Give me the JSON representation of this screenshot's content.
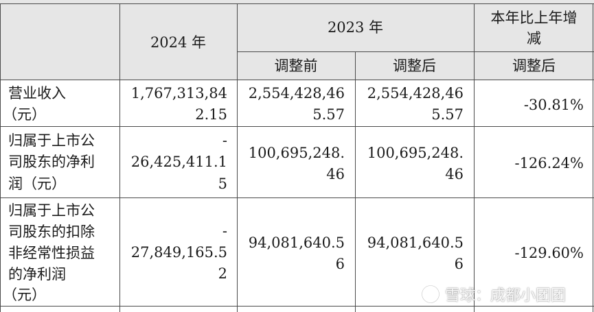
{
  "header": {
    "year_2024": "2024 年",
    "year_2023": "2023 年",
    "yoy_line1": "本年比上年增",
    "yoy_line2": "减",
    "before_adjust": "调整前",
    "after_adjust": "调整后",
    "yoy_after_adjust": "调整后"
  },
  "rows": [
    {
      "label": [
        "营业收入",
        "（元）"
      ],
      "v2024": [
        "1,767,313,84",
        "2.15"
      ],
      "before": [
        "2,554,428,46",
        "5.57"
      ],
      "after": [
        "2,554,428,46",
        "5.57"
      ],
      "change": "-30.81%"
    },
    {
      "label": [
        "归属于上市公",
        "司股东的净利",
        "润（元）"
      ],
      "v2024": [
        "-",
        "26,425,411.1",
        "5"
      ],
      "before": [
        "100,695,248.",
        "46"
      ],
      "after": [
        "100,695,248.",
        "46"
      ],
      "change": "-126.24%"
    },
    {
      "label": [
        "归属于上市公",
        "司股东的扣除",
        "非经常性损益",
        "的净利润",
        "（元）"
      ],
      "v2024": [
        "-",
        "27,849,165.5",
        "2"
      ],
      "before": [
        "94,081,640.5",
        "6"
      ],
      "after": [
        "94,081,640.5",
        "6"
      ],
      "change": "-129.60%"
    }
  ],
  "watermark": {
    "text": "雪球：成都小团团",
    "icon": "snowball-logo-icon"
  }
}
